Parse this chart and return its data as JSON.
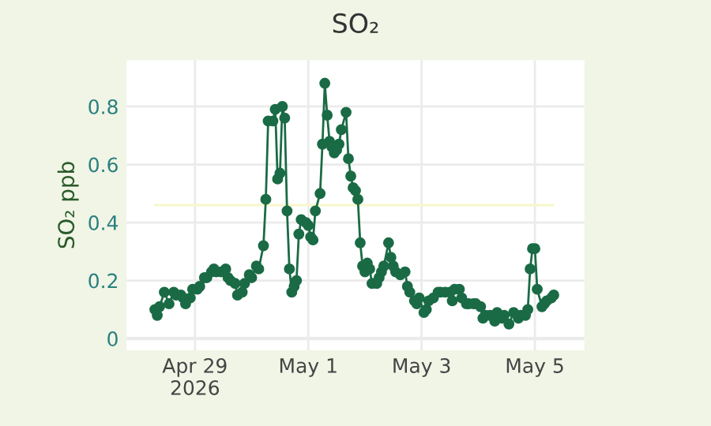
{
  "chart_data": {
    "type": "line",
    "title": "SO₂",
    "ylabel": "SO₂ ppb",
    "xlim": [
      "2026-04-27T19:00",
      "2026-05-05T21:00"
    ],
    "xticks": [
      {
        "value": "2026-04-29",
        "label": "Apr 29\n2026"
      },
      {
        "value": "2026-05-01",
        "label": "May 1"
      },
      {
        "value": "2026-05-03",
        "label": "May 3"
      },
      {
        "value": "2026-05-05",
        "label": "May 5"
      }
    ],
    "ylim": [
      -0.04,
      0.96
    ],
    "yticks": [
      0,
      0.2,
      0.4,
      0.6,
      0.8
    ],
    "grid": true,
    "marker": "circle",
    "line_style": "solid",
    "series": [
      {
        "color": "#1a6b45",
        "x": [
          "2026-04-28T07:00",
          "2026-04-28T08:00",
          "2026-04-28T09:00",
          "2026-04-28T11:00",
          "2026-04-28T13:00",
          "2026-04-28T15:00",
          "2026-04-28T16:00",
          "2026-04-28T18:00",
          "2026-04-28T19:00",
          "2026-04-28T20:00",
          "2026-04-28T22:00",
          "2026-04-28T23:00",
          "2026-04-29T01:00",
          "2026-04-29T02:00",
          "2026-04-29T04:00",
          "2026-04-29T05:00",
          "2026-04-29T07:00",
          "2026-04-29T08:00",
          "2026-04-29T09:00",
          "2026-04-29T11:00",
          "2026-04-29T13:00",
          "2026-04-29T14:00",
          "2026-04-29T15:00",
          "2026-04-29T17:00",
          "2026-04-29T18:00",
          "2026-04-29T20:00",
          "2026-04-29T21:00",
          "2026-04-29T23:00",
          "2026-04-30T00:00",
          "2026-04-30T02:00",
          "2026-04-30T03:00",
          "2026-04-30T05:00",
          "2026-04-30T06:00",
          "2026-04-30T07:00",
          "2026-04-30T09:00",
          "2026-04-30T10:00",
          "2026-04-30T11:00",
          "2026-04-30T12:00",
          "2026-04-30T13:00",
          "2026-04-30T14:00",
          "2026-04-30T15:00",
          "2026-04-30T16:00",
          "2026-04-30T17:00",
          "2026-04-30T18:00",
          "2026-04-30T19:00",
          "2026-04-30T20:00",
          "2026-04-30T21:00",
          "2026-04-30T23:00",
          "2026-05-01T00:00",
          "2026-05-01T01:00",
          "2026-05-01T02:00",
          "2026-05-01T03:00",
          "2026-05-01T05:00",
          "2026-05-01T06:00",
          "2026-05-01T07:00",
          "2026-05-01T08:00",
          "2026-05-01T09:00",
          "2026-05-01T10:00",
          "2026-05-01T11:00",
          "2026-05-01T12:00",
          "2026-05-01T13:00",
          "2026-05-01T14:00",
          "2026-05-01T16:00",
          "2026-05-01T17:00",
          "2026-05-01T18:00",
          "2026-05-01T19:00",
          "2026-05-01T20:00",
          "2026-05-01T21:00",
          "2026-05-01T22:00",
          "2026-05-01T23:00",
          "2026-05-02T00:00",
          "2026-05-02T01:00",
          "2026-05-02T02:00",
          "2026-05-02T03:00",
          "2026-05-02T05:00",
          "2026-05-02T06:00",
          "2026-05-02T07:00",
          "2026-05-02T08:00",
          "2026-05-02T10:00",
          "2026-05-02T11:00",
          "2026-05-02T12:00",
          "2026-05-02T13:00",
          "2026-05-02T15:00",
          "2026-05-02T17:00",
          "2026-05-02T18:00",
          "2026-05-02T19:00",
          "2026-05-02T21:00",
          "2026-05-02T22:00",
          "2026-05-02T23:00",
          "2026-05-03T01:00",
          "2026-05-03T02:00",
          "2026-05-03T03:00",
          "2026-05-03T05:00",
          "2026-05-03T07:00",
          "2026-05-03T08:00",
          "2026-05-03T10:00",
          "2026-05-03T12:00",
          "2026-05-03T13:00",
          "2026-05-03T14:00",
          "2026-05-03T16:00",
          "2026-05-03T17:00",
          "2026-05-03T19:00",
          "2026-05-03T20:00",
          "2026-05-03T22:00",
          "2026-05-03T23:00",
          "2026-05-04T01:00",
          "2026-05-04T02:00",
          "2026-05-04T03:00",
          "2026-05-04T05:00",
          "2026-05-04T07:00",
          "2026-05-04T08:00",
          "2026-05-04T10:00",
          "2026-05-04T11:00",
          "2026-05-04T13:00",
          "2026-05-04T15:00",
          "2026-05-04T17:00",
          "2026-05-04T18:00",
          "2026-05-04T20:00",
          "2026-05-04T21:00",
          "2026-05-04T22:00",
          "2026-05-04T23:00",
          "2026-05-05T00:00",
          "2026-05-05T01:00",
          "2026-05-05T03:00",
          "2026-05-05T04:00",
          "2026-05-05T05:00",
          "2026-05-05T07:00",
          "2026-05-05T08:00"
        ],
        "values": [
          0.1,
          0.08,
          0.11,
          0.16,
          0.12,
          0.16,
          0.15,
          0.15,
          0.14,
          0.12,
          0.14,
          0.17,
          0.17,
          0.18,
          0.21,
          0.21,
          0.23,
          0.24,
          0.23,
          0.23,
          0.24,
          0.21,
          0.2,
          0.19,
          0.15,
          0.16,
          0.19,
          0.22,
          0.21,
          0.25,
          0.24,
          0.32,
          0.48,
          0.75,
          0.75,
          0.79,
          0.55,
          0.57,
          0.8,
          0.76,
          0.44,
          0.24,
          0.16,
          0.18,
          0.2,
          0.36,
          0.41,
          0.4,
          0.39,
          0.35,
          0.34,
          0.44,
          0.5,
          0.67,
          0.88,
          0.77,
          0.68,
          0.66,
          0.64,
          0.65,
          0.67,
          0.72,
          0.78,
          0.62,
          0.56,
          0.52,
          0.51,
          0.48,
          0.33,
          0.25,
          0.23,
          0.26,
          0.24,
          0.19,
          0.19,
          0.21,
          0.23,
          0.25,
          0.33,
          0.28,
          0.25,
          0.23,
          0.22,
          0.23,
          0.18,
          0.16,
          0.13,
          0.12,
          0.14,
          0.09,
          0.1,
          0.13,
          0.14,
          0.16,
          0.16,
          0.16,
          0.16,
          0.13,
          0.17,
          0.17,
          0.14,
          0.12,
          0.12,
          0.12,
          0.12,
          0.11,
          0.07,
          0.08,
          0.08,
          0.06,
          0.09,
          0.07,
          0.08,
          0.05,
          0.09,
          0.07,
          0.08,
          0.08,
          0.1,
          0.24,
          0.31,
          0.31,
          0.17,
          0.11,
          0.12,
          0.13,
          0.14,
          0.15
        ]
      },
      {
        "color": "#f7f7cc",
        "marker": "none",
        "x": [
          "2026-04-28T07:00",
          "2026-05-05T08:00"
        ],
        "values": [
          0.46,
          0.46
        ]
      }
    ]
  }
}
